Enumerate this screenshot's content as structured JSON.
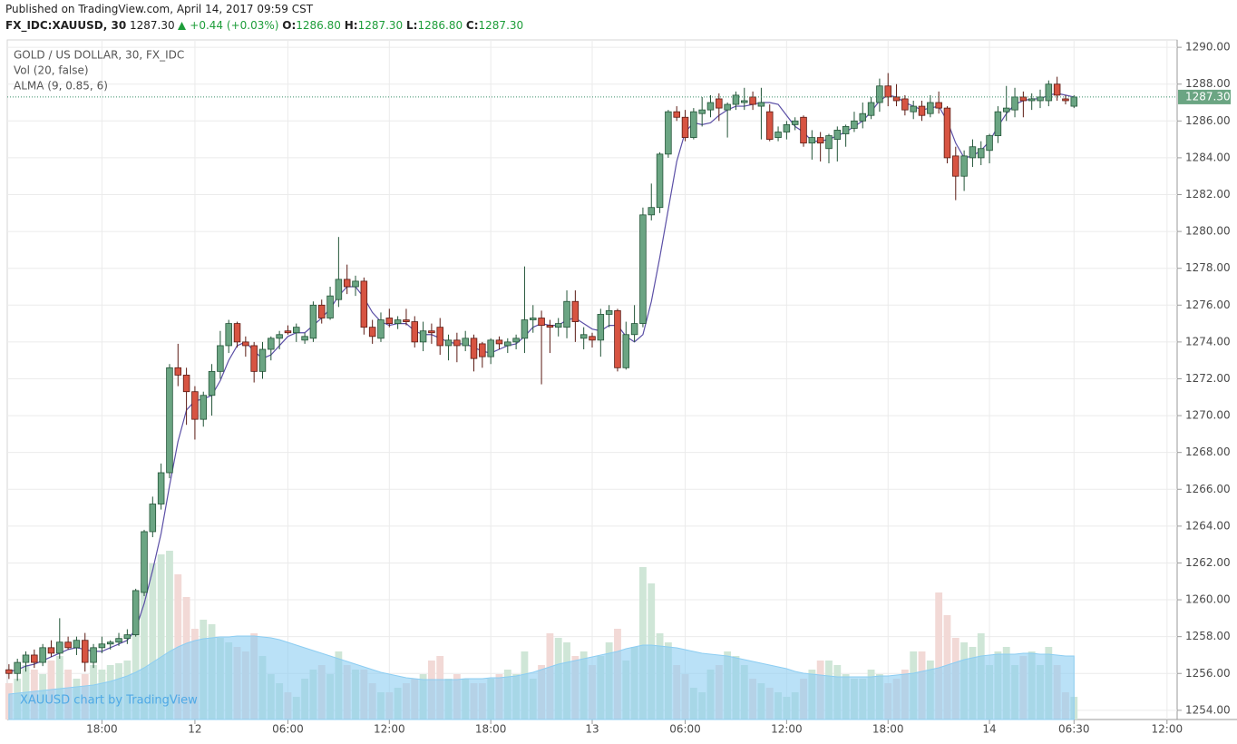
{
  "header": {
    "published": "Published on TradingView.com, April 14, 2017 09:59 CST",
    "symbol": "FX_IDC:XAUUSD, 30",
    "last": "1287.30",
    "change": "+0.44 (+0.03%)",
    "o_label": "O:",
    "o": "1286.80",
    "h_label": "H:",
    "h": "1287.30",
    "l_label": "L:",
    "l": "1286.80",
    "c_label": "C:",
    "c": "1287.30"
  },
  "chart_data": {
    "type": "candlestick",
    "title": "GOLD / US DOLLAR, 30, FX_IDC",
    "indicators": [
      "Vol (20, false)",
      "ALMA (9, 0.85, 6)"
    ],
    "watermark": "XAUUSD chart by TradingView",
    "colors": {
      "up": "#6ba583",
      "down": "#d75442",
      "alma": "#5b4fa6",
      "volume_up": "#cfe6d7",
      "volume_down": "#f2d9d6",
      "volume_ma": "#8ccdf2"
    },
    "open": [
      1256.2,
      1256.0,
      1256.6,
      1257.0,
      1256.6,
      1257.4,
      1257.1,
      1257.7,
      1257.4,
      1257.8,
      1256.6,
      1257.4,
      1257.6,
      1257.7,
      1257.9,
      1258.1,
      1260.4,
      1263.7,
      1265.2,
      1266.9,
      1272.6,
      1272.2,
      1271.3,
      1269.8,
      1271.1,
      1272.4,
      1273.8,
      1275.0,
      1274.0,
      1273.8,
      1272.4,
      1273.6,
      1274.2,
      1274.6,
      1274.5,
      1274.1,
      1274.2,
      1276.0,
      1275.3,
      1276.3,
      1277.4,
      1277.0,
      1277.3,
      1274.8,
      1274.2,
      1275.3,
      1275.0,
      1275.2,
      1275.1,
      1274.0,
      1274.6,
      1274.8,
      1273.8,
      1274.1,
      1273.8,
      1274.2,
      1273.9,
      1273.2,
      1274.1,
      1273.8,
      1274.0,
      1274.2,
      1275.2,
      1275.3,
      1274.9,
      1274.8,
      1274.8,
      1276.2,
      1274.2,
      1274.3,
      1274.1,
      1275.5,
      1275.7,
      1272.6,
      1274.4,
      1275.0,
      1280.9,
      1281.3,
      1284.2,
      1286.5,
      1286.2,
      1285.1,
      1286.4,
      1286.6,
      1287.2,
      1286.6,
      1286.9,
      1287.0,
      1287.3,
      1286.8,
      1286.5,
      1285.1,
      1285.4,
      1285.8,
      1286.2,
      1284.8,
      1285.1,
      1284.5,
      1285.0,
      1285.3,
      1285.6,
      1286.0,
      1286.3,
      1287.0,
      1287.9,
      1287.3,
      1287.2,
      1286.5,
      1286.8,
      1286.4,
      1287.0,
      1286.7,
      1284.1,
      1283.0,
      1284.0,
      1284.0,
      1284.4,
      1285.2,
      1286.5,
      1286.6,
      1287.3,
      1287.1,
      1287.1,
      1287.1,
      1288.0,
      1287.2,
      1286.8
    ],
    "high": [
      1256.5,
      1256.8,
      1257.2,
      1257.3,
      1257.6,
      1257.8,
      1259.0,
      1258.0,
      1258.0,
      1258.2,
      1257.6,
      1258.0,
      1257.8,
      1258.2,
      1258.4,
      1260.6,
      1263.8,
      1265.6,
      1267.4,
      1272.8,
      1273.9,
      1272.6,
      1271.6,
      1271.3,
      1272.8,
      1274.6,
      1275.2,
      1275.1,
      1274.3,
      1274.0,
      1274.0,
      1274.3,
      1274.6,
      1274.9,
      1275.0,
      1274.5,
      1276.2,
      1276.3,
      1277.0,
      1279.7,
      1278.2,
      1277.6,
      1277.5,
      1275.2,
      1275.6,
      1275.8,
      1275.4,
      1275.8,
      1275.4,
      1275.1,
      1275.0,
      1275.3,
      1274.4,
      1274.5,
      1274.6,
      1274.4,
      1274.0,
      1274.2,
      1274.3,
      1274.2,
      1274.4,
      1278.1,
      1276.0,
      1275.7,
      1275.2,
      1275.3,
      1276.8,
      1276.8,
      1274.8,
      1274.5,
      1275.8,
      1276.0,
      1275.8,
      1275.1,
      1276.0,
      1281.3,
      1282.6,
      1284.3,
      1286.6,
      1286.8,
      1286.6,
      1286.7,
      1287.3,
      1287.4,
      1287.5,
      1287.0,
      1287.6,
      1287.8,
      1287.6,
      1287.8,
      1286.9,
      1285.7,
      1286.0,
      1286.2,
      1286.3,
      1285.5,
      1285.4,
      1285.3,
      1285.7,
      1285.8,
      1286.5,
      1287.0,
      1287.3,
      1288.3,
      1288.6,
      1288.0,
      1287.4,
      1287.1,
      1287.1,
      1287.4,
      1287.6,
      1286.8,
      1284.6,
      1284.4,
      1285.0,
      1284.9,
      1285.3,
      1286.8,
      1287.9,
      1287.8,
      1287.6,
      1287.5,
      1287.7,
      1288.2,
      1288.4,
      1287.4,
      1287.4
    ],
    "low": [
      1255.7,
      1255.6,
      1256.1,
      1256.3,
      1256.4,
      1256.9,
      1256.8,
      1257.3,
      1257.0,
      1256.1,
      1256.3,
      1257.1,
      1257.3,
      1257.5,
      1257.6,
      1258.0,
      1260.2,
      1263.4,
      1264.9,
      1266.6,
      1271.6,
      1269.5,
      1268.7,
      1269.4,
      1270.0,
      1272.0,
      1273.4,
      1273.7,
      1273.2,
      1271.8,
      1272.0,
      1273.0,
      1273.6,
      1274.4,
      1274.0,
      1273.9,
      1274.0,
      1275.0,
      1275.2,
      1275.9,
      1276.6,
      1276.5,
      1274.4,
      1273.9,
      1274.0,
      1274.8,
      1274.7,
      1274.9,
      1273.7,
      1273.5,
      1273.9,
      1273.3,
      1273.0,
      1272.9,
      1273.5,
      1272.4,
      1272.6,
      1272.8,
      1273.6,
      1273.4,
      1273.6,
      1273.4,
      1274.5,
      1271.7,
      1273.4,
      1274.3,
      1274.2,
      1274.0,
      1273.6,
      1273.7,
      1273.2,
      1274.8,
      1272.4,
      1272.5,
      1274.0,
      1274.8,
      1280.6,
      1281.0,
      1284.0,
      1286.0,
      1284.9,
      1285.0,
      1285.7,
      1286.2,
      1286.0,
      1285.1,
      1286.6,
      1286.6,
      1286.6,
      1285.0,
      1284.9,
      1284.9,
      1285.0,
      1285.5,
      1284.6,
      1283.9,
      1283.8,
      1283.7,
      1283.8,
      1284.6,
      1285.4,
      1285.6,
      1286.1,
      1286.5,
      1286.8,
      1286.8,
      1286.3,
      1286.1,
      1286.0,
      1286.2,
      1286.4,
      1283.7,
      1281.7,
      1282.2,
      1283.5,
      1283.6,
      1283.7,
      1284.8,
      1286.0,
      1286.2,
      1286.2,
      1286.6,
      1286.7,
      1286.8,
      1287.1,
      1286.9,
      1286.7
    ],
    "close": [
      1256.0,
      1256.6,
      1257.0,
      1256.6,
      1257.4,
      1257.1,
      1257.7,
      1257.4,
      1257.8,
      1256.6,
      1257.4,
      1257.6,
      1257.7,
      1257.9,
      1258.1,
      1260.5,
      1263.7,
      1265.2,
      1266.9,
      1272.6,
      1272.2,
      1271.3,
      1269.8,
      1271.1,
      1272.4,
      1273.8,
      1275.0,
      1274.0,
      1273.8,
      1272.4,
      1273.6,
      1274.2,
      1274.4,
      1274.5,
      1274.8,
      1274.3,
      1276.0,
      1275.3,
      1276.5,
      1277.4,
      1277.0,
      1277.3,
      1274.8,
      1274.3,
      1275.2,
      1275.0,
      1275.2,
      1275.1,
      1274.0,
      1274.6,
      1274.5,
      1273.8,
      1274.1,
      1273.8,
      1274.2,
      1273.1,
      1273.2,
      1274.1,
      1273.9,
      1274.0,
      1274.2,
      1275.2,
      1275.3,
      1274.9,
      1274.8,
      1275.0,
      1276.2,
      1275.1,
      1274.4,
      1274.1,
      1275.5,
      1275.7,
      1272.6,
      1274.4,
      1275.0,
      1280.9,
      1281.3,
      1284.2,
      1286.5,
      1286.2,
      1285.1,
      1286.5,
      1286.6,
      1287.0,
      1286.7,
      1286.9,
      1287.4,
      1287.1,
      1286.9,
      1287.0,
      1285.0,
      1285.4,
      1285.8,
      1286.0,
      1284.8,
      1285.1,
      1284.8,
      1285.2,
      1285.5,
      1285.7,
      1286.0,
      1286.4,
      1287.0,
      1287.9,
      1287.3,
      1287.1,
      1286.6,
      1286.8,
      1286.3,
      1287.0,
      1286.7,
      1284.0,
      1283.0,
      1284.1,
      1284.6,
      1284.5,
      1285.2,
      1286.5,
      1286.7,
      1287.3,
      1287.1,
      1287.2,
      1287.3,
      1288.0,
      1287.4,
      1287.1,
      1287.3
    ],
    "alma": [
      1256.1,
      1256.2,
      1256.4,
      1256.5,
      1256.7,
      1256.9,
      1257.1,
      1257.3,
      1257.4,
      1257.3,
      1257.2,
      1257.2,
      1257.4,
      1257.6,
      1257.8,
      1258.4,
      1259.8,
      1261.6,
      1263.6,
      1266.2,
      1268.6,
      1270.3,
      1270.8,
      1270.9,
      1271.1,
      1271.9,
      1273.0,
      1273.8,
      1274.0,
      1273.5,
      1273.1,
      1273.3,
      1273.8,
      1274.3,
      1274.5,
      1274.5,
      1274.9,
      1275.3,
      1275.8,
      1276.5,
      1277.0,
      1277.0,
      1276.4,
      1275.6,
      1275.1,
      1274.9,
      1275.0,
      1275.0,
      1274.6,
      1274.4,
      1274.4,
      1274.2,
      1274.0,
      1273.9,
      1273.9,
      1273.7,
      1273.5,
      1273.4,
      1273.6,
      1273.8,
      1273.9,
      1274.3,
      1274.8,
      1275.0,
      1274.9,
      1274.9,
      1275.2,
      1275.3,
      1275.0,
      1274.7,
      1274.6,
      1274.9,
      1274.9,
      1274.3,
      1274.0,
      1274.4,
      1276.2,
      1278.6,
      1281.2,
      1283.8,
      1285.4,
      1285.9,
      1285.8,
      1285.9,
      1286.3,
      1286.6,
      1286.8,
      1286.8,
      1286.9,
      1287.0,
      1287.0,
      1286.9,
      1286.3,
      1285.7,
      1285.4,
      1284.9,
      1284.9,
      1285.0,
      1285.2,
      1285.4,
      1285.7,
      1286.0,
      1286.5,
      1287.1,
      1287.4,
      1287.3,
      1287.0,
      1286.8,
      1286.6,
      1286.7,
      1286.8,
      1286.0,
      1284.8,
      1284.0,
      1284.1,
      1284.4,
      1284.9,
      1285.7,
      1286.4,
      1286.9,
      1287.1,
      1287.2,
      1287.2,
      1287.4,
      1287.5,
      1287.4,
      1287.3
    ],
    "volume": [
      40,
      45,
      60,
      55,
      50,
      65,
      70,
      55,
      45,
      50,
      60,
      55,
      60,
      62,
      65,
      110,
      150,
      172,
      182,
      186,
      160,
      135,
      100,
      110,
      105,
      90,
      85,
      80,
      75,
      95,
      70,
      50,
      40,
      30,
      25,
      45,
      55,
      60,
      50,
      75,
      60,
      55,
      55,
      40,
      30,
      30,
      35,
      40,
      45,
      50,
      65,
      70,
      45,
      50,
      45,
      40,
      40,
      45,
      50,
      55,
      50,
      75,
      45,
      60,
      95,
      90,
      85,
      70,
      75,
      60,
      70,
      85,
      100,
      65,
      80,
      168,
      150,
      95,
      85,
      60,
      50,
      35,
      30,
      55,
      60,
      75,
      70,
      60,
      45,
      40,
      35,
      30,
      25,
      30,
      45,
      55,
      65,
      65,
      60,
      50,
      45,
      45,
      55,
      50,
      40,
      45,
      55,
      75,
      75,
      65,
      140,
      115,
      90,
      85,
      80,
      95,
      60,
      75,
      80,
      60,
      70,
      75,
      60,
      80,
      60,
      30,
      25
    ],
    "volume_ma": [
      28,
      29,
      30,
      31,
      32,
      33,
      34,
      35,
      36,
      37,
      38,
      40,
      42,
      45,
      48,
      52,
      57,
      63,
      69,
      75,
      80,
      84,
      87,
      89,
      90,
      91,
      91,
      92,
      92,
      92,
      91,
      90,
      88,
      85,
      82,
      79,
      76,
      73,
      70,
      67,
      64,
      61,
      58,
      55,
      52,
      50,
      48,
      46,
      45,
      44,
      44,
      44,
      44,
      44,
      45,
      45,
      45,
      46,
      46,
      47,
      48,
      50,
      52,
      55,
      58,
      61,
      63,
      65,
      67,
      69,
      71,
      73,
      75,
      78,
      80,
      82,
      82,
      81,
      80,
      79,
      77,
      75,
      73,
      72,
      71,
      70,
      68,
      66,
      64,
      62,
      60,
      58,
      56,
      53,
      51,
      50,
      49,
      48,
      47,
      47,
      47,
      47,
      47,
      48,
      48,
      49,
      50,
      51,
      53,
      55,
      57,
      60,
      63,
      66,
      68,
      70,
      71,
      72,
      72,
      72,
      73,
      73,
      72,
      72,
      71,
      70,
      70
    ],
    "last_price": {
      "value": 1287.3,
      "label": "1287.30"
    },
    "ylim": [
      1253.5,
      1290.4
    ],
    "yticks": [
      {
        "value": 1254,
        "label": "1254.00"
      },
      {
        "value": 1256,
        "label": "1256.00"
      },
      {
        "value": 1258,
        "label": "1258.00"
      },
      {
        "value": 1260,
        "label": "1260.00"
      },
      {
        "value": 1262,
        "label": "1262.00"
      },
      {
        "value": 1264,
        "label": "1264.00"
      },
      {
        "value": 1266,
        "label": "1266.00"
      },
      {
        "value": 1268,
        "label": "1268.00"
      },
      {
        "value": 1270,
        "label": "1270.00"
      },
      {
        "value": 1272,
        "label": "1272.00"
      },
      {
        "value": 1274,
        "label": "1274.00"
      },
      {
        "value": 1276,
        "label": "1276.00"
      },
      {
        "value": 1278,
        "label": "1278.00"
      },
      {
        "value": 1280,
        "label": "1280.00"
      },
      {
        "value": 1282,
        "label": "1282.00"
      },
      {
        "value": 1284,
        "label": "1284.00"
      },
      {
        "value": 1286,
        "label": "1286.00"
      },
      {
        "value": 1288,
        "label": "1288.00"
      },
      {
        "value": 1290,
        "label": "1290.00"
      }
    ],
    "xlim": [
      -0.2,
      138.2
    ],
    "xticks": [
      {
        "value": 11,
        "label": "18:00"
      },
      {
        "value": 22,
        "label": "12"
      },
      {
        "value": 33,
        "label": "06:00"
      },
      {
        "value": 45,
        "label": "12:00"
      },
      {
        "value": 57,
        "label": "18:00"
      },
      {
        "value": 69,
        "label": "13"
      },
      {
        "value": 80,
        "label": "06:00"
      },
      {
        "value": 92,
        "label": "12:00"
      },
      {
        "value": 104,
        "label": "18:00"
      },
      {
        "value": 116,
        "label": "14"
      },
      {
        "value": 126,
        "label": "06:30"
      },
      {
        "value": 137,
        "label": "12:00"
      }
    ],
    "grid": true
  }
}
